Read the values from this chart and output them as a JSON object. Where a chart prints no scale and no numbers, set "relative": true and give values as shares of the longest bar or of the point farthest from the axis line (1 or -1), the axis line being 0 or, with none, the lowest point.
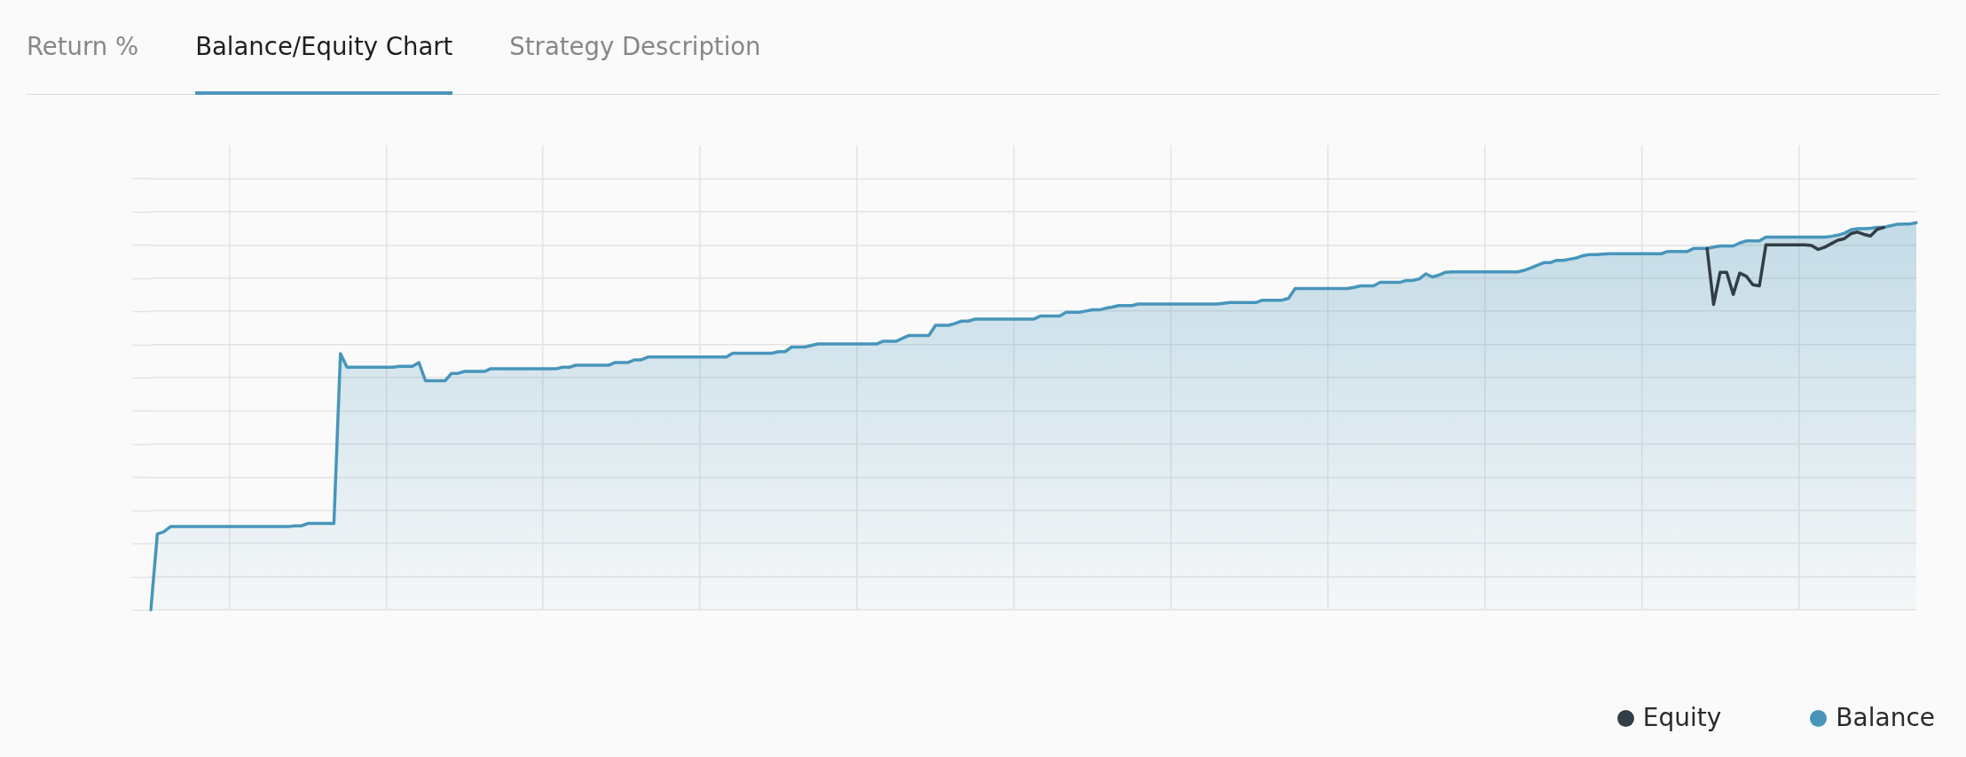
{
  "chart_data": {
    "type": "line",
    "title": "Balance/Equity Chart",
    "annotations": [
      "Return %",
      "Strategy Description"
    ],
    "relative": true,
    "grid": true,
    "legend": "bottom right",
    "categories": [
      null,
      null,
      null,
      null,
      null,
      null,
      null,
      null,
      null,
      null,
      null,
      null,
      null,
      null,
      null,
      null,
      null,
      null,
      null,
      null,
      null,
      null,
      null,
      null,
      null,
      null,
      null,
      null,
      null,
      null,
      null,
      null,
      null,
      null,
      null,
      null,
      null,
      null,
      null,
      null,
      null,
      null,
      null,
      null,
      null,
      null,
      null,
      null,
      null,
      null,
      null,
      null,
      null,
      null,
      null,
      null,
      null,
      null,
      null,
      null,
      null,
      null,
      null,
      null,
      null,
      null,
      null,
      null,
      null,
      null,
      null,
      null,
      null,
      null,
      null,
      null,
      null,
      null,
      null,
      null,
      null,
      null,
      null,
      null,
      null,
      null,
      null,
      null,
      null,
      null,
      null,
      null,
      null,
      null,
      null,
      null,
      null,
      null,
      null,
      null,
      null,
      null,
      null,
      null,
      null,
      null,
      null,
      null,
      null,
      null,
      null,
      null,
      null,
      null,
      null,
      null,
      null,
      null,
      null,
      null,
      null,
      null,
      null,
      null,
      null,
      null,
      null,
      null,
      null,
      null,
      null,
      null,
      null,
      null,
      null,
      null,
      null,
      null,
      null,
      null,
      null,
      null,
      null,
      null,
      null,
      null,
      null,
      null,
      null,
      null,
      null,
      null,
      null,
      null,
      null,
      null,
      null,
      null,
      null,
      null,
      null,
      null,
      null,
      null,
      null,
      null,
      null,
      null,
      null,
      null,
      null,
      null,
      null,
      null,
      null,
      null,
      null,
      null,
      null,
      null,
      null,
      null,
      null,
      null,
      null,
      null,
      null,
      null,
      null,
      null,
      null,
      null,
      null,
      null,
      null,
      null,
      null,
      null,
      null,
      null,
      null,
      null,
      null,
      null,
      null,
      null,
      null,
      null,
      null,
      null,
      null,
      null,
      null,
      null,
      null,
      null,
      null,
      null,
      null,
      null,
      null,
      null,
      null,
      null,
      null,
      null,
      null,
      null,
      null,
      null,
      null,
      null,
      null,
      null,
      null,
      null,
      null,
      null,
      null,
      null,
      null,
      null,
      null,
      null,
      null,
      null,
      null,
      null,
      null,
      null,
      null,
      null,
      null,
      null,
      null,
      null,
      null,
      null,
      null,
      null,
      null,
      null,
      null,
      null,
      null,
      null,
      null,
      null,
      null,
      null,
      null
    ],
    "series": [
      {
        "name": "Equity",
        "type": "line",
        "color": "#323e45",
        "values": [
          null,
          null,
          null,
          null,
          null,
          null,
          null,
          null,
          null,
          null,
          null,
          null,
          null,
          null,
          null,
          null,
          null,
          null,
          null,
          null,
          null,
          null,
          null,
          null,
          null,
          null,
          null,
          null,
          null,
          null,
          null,
          null,
          null,
          null,
          null,
          null,
          null,
          null,
          null,
          null,
          null,
          null,
          null,
          null,
          null,
          null,
          null,
          null,
          null,
          null,
          null,
          null,
          null,
          null,
          null,
          null,
          null,
          null,
          null,
          null,
          null,
          null,
          null,
          null,
          null,
          null,
          null,
          null,
          null,
          null,
          null,
          null,
          null,
          null,
          null,
          null,
          null,
          null,
          null,
          null,
          null,
          null,
          null,
          null,
          null,
          null,
          null,
          null,
          null,
          null,
          null,
          null,
          null,
          null,
          null,
          null,
          null,
          null,
          null,
          null,
          null,
          null,
          null,
          null,
          null,
          null,
          null,
          null,
          null,
          null,
          null,
          null,
          null,
          null,
          null,
          null,
          null,
          null,
          null,
          null,
          null,
          null,
          null,
          null,
          null,
          null,
          null,
          null,
          null,
          null,
          null,
          null,
          null,
          null,
          null,
          null,
          null,
          null,
          null,
          null,
          null,
          null,
          null,
          null,
          null,
          null,
          null,
          null,
          null,
          null,
          null,
          null,
          null,
          null,
          null,
          null,
          null,
          null,
          null,
          null,
          null,
          null,
          null,
          null,
          null,
          null,
          null,
          null,
          null,
          null,
          null,
          null,
          null,
          null,
          null,
          null,
          null,
          null,
          null,
          null,
          null,
          null,
          null,
          null,
          null,
          null,
          null,
          null,
          null,
          null,
          null,
          null,
          null,
          null,
          null,
          null,
          null,
          null,
          null,
          null,
          null,
          null,
          null,
          null,
          null,
          null,
          null,
          null,
          null,
          null,
          null,
          null,
          null,
          null,
          null,
          null,
          null,
          null,
          null,
          null,
          null,
          null,
          null,
          null,
          null,
          null,
          null,
          null,
          null,
          null,
          null,
          null,
          null,
          null,
          null,
          null,
          null,
          null,
          0.934,
          0.789,
          0.872,
          0.872,
          0.815,
          0.87,
          0.862,
          0.84,
          0.837,
          0.943,
          0.943,
          0.943,
          0.943,
          0.943,
          0.943,
          0.943,
          0.941,
          0.931,
          0.937,
          0.946,
          0.955,
          0.959,
          0.972,
          0.976,
          0.97,
          0.966,
          0.983,
          0.988,
          null,
          null,
          null,
          null,
          null
        ]
      },
      {
        "name": "Balance",
        "type": "area",
        "color": "#4795bb",
        "values": [
          0,
          0.196,
          0.202,
          0.215,
          0.215,
          0.215,
          0.215,
          0.215,
          0.215,
          0.215,
          0.215,
          0.215,
          0.215,
          0.215,
          0.215,
          0.215,
          0.215,
          0.215,
          0.215,
          0.215,
          0.215,
          0.215,
          0.217,
          0.217,
          0.223,
          0.223,
          0.223,
          0.223,
          0.223,
          0.662,
          0.627,
          0.627,
          0.627,
          0.627,
          0.627,
          0.627,
          0.627,
          0.627,
          0.629,
          0.629,
          0.629,
          0.639,
          0.592,
          0.592,
          0.592,
          0.592,
          0.611,
          0.611,
          0.616,
          0.616,
          0.616,
          0.616,
          0.623,
          0.623,
          0.623,
          0.623,
          0.623,
          0.623,
          0.623,
          0.623,
          0.623,
          0.623,
          0.623,
          0.627,
          0.627,
          0.632,
          0.632,
          0.632,
          0.632,
          0.632,
          0.632,
          0.639,
          0.639,
          0.639,
          0.646,
          0.646,
          0.653,
          0.653,
          0.653,
          0.653,
          0.653,
          0.653,
          0.653,
          0.653,
          0.653,
          0.653,
          0.653,
          0.653,
          0.653,
          0.663,
          0.663,
          0.663,
          0.663,
          0.663,
          0.663,
          0.663,
          0.667,
          0.667,
          0.679,
          0.679,
          0.679,
          0.683,
          0.687,
          0.687,
          0.687,
          0.687,
          0.687,
          0.687,
          0.687,
          0.687,
          0.687,
          0.687,
          0.694,
          0.694,
          0.694,
          0.702,
          0.709,
          0.709,
          0.709,
          0.709,
          0.735,
          0.735,
          0.735,
          0.74,
          0.746,
          0.746,
          0.751,
          0.751,
          0.751,
          0.751,
          0.751,
          0.751,
          0.751,
          0.751,
          0.751,
          0.751,
          0.759,
          0.759,
          0.759,
          0.759,
          0.769,
          0.769,
          0.769,
          0.772,
          0.775,
          0.775,
          0.779,
          0.782,
          0.786,
          0.786,
          0.786,
          0.79,
          0.79,
          0.79,
          0.79,
          0.79,
          0.79,
          0.79,
          0.79,
          0.79,
          0.79,
          0.79,
          0.79,
          0.79,
          0.792,
          0.794,
          0.794,
          0.794,
          0.794,
          0.794,
          0.8,
          0.8,
          0.8,
          0.8,
          0.805,
          0.83,
          0.83,
          0.83,
          0.83,
          0.83,
          0.83,
          0.83,
          0.83,
          0.83,
          0.833,
          0.837,
          0.837,
          0.837,
          0.846,
          0.846,
          0.846,
          0.846,
          0.851,
          0.851,
          0.855,
          0.868,
          0.86,
          0.865,
          0.872,
          0.873,
          0.873,
          0.873,
          0.873,
          0.873,
          0.873,
          0.873,
          0.873,
          0.873,
          0.873,
          0.873,
          0.877,
          0.883,
          0.89,
          0.897,
          0.897,
          0.903,
          0.903,
          0.906,
          0.909,
          0.915,
          0.918,
          0.918,
          0.919,
          0.92,
          0.92,
          0.92,
          0.92,
          0.92,
          0.92,
          0.92,
          0.92,
          0.92,
          0.926,
          0.926,
          0.926,
          0.926,
          0.934,
          0.934,
          0.934,
          0.937,
          0.94,
          0.94,
          0.94,
          0.948,
          0.953,
          0.953,
          0.953,
          0.963,
          0.963,
          0.963,
          0.963,
          0.963,
          0.963,
          0.963,
          0.963,
          0.963,
          0.963,
          0.965,
          0.968,
          0.973,
          0.982,
          0.985,
          0.985,
          0.986,
          0.988,
          0.988,
          0.992,
          0.996,
          0.997,
          0.997,
          1
        ]
      }
    ]
  }
}
